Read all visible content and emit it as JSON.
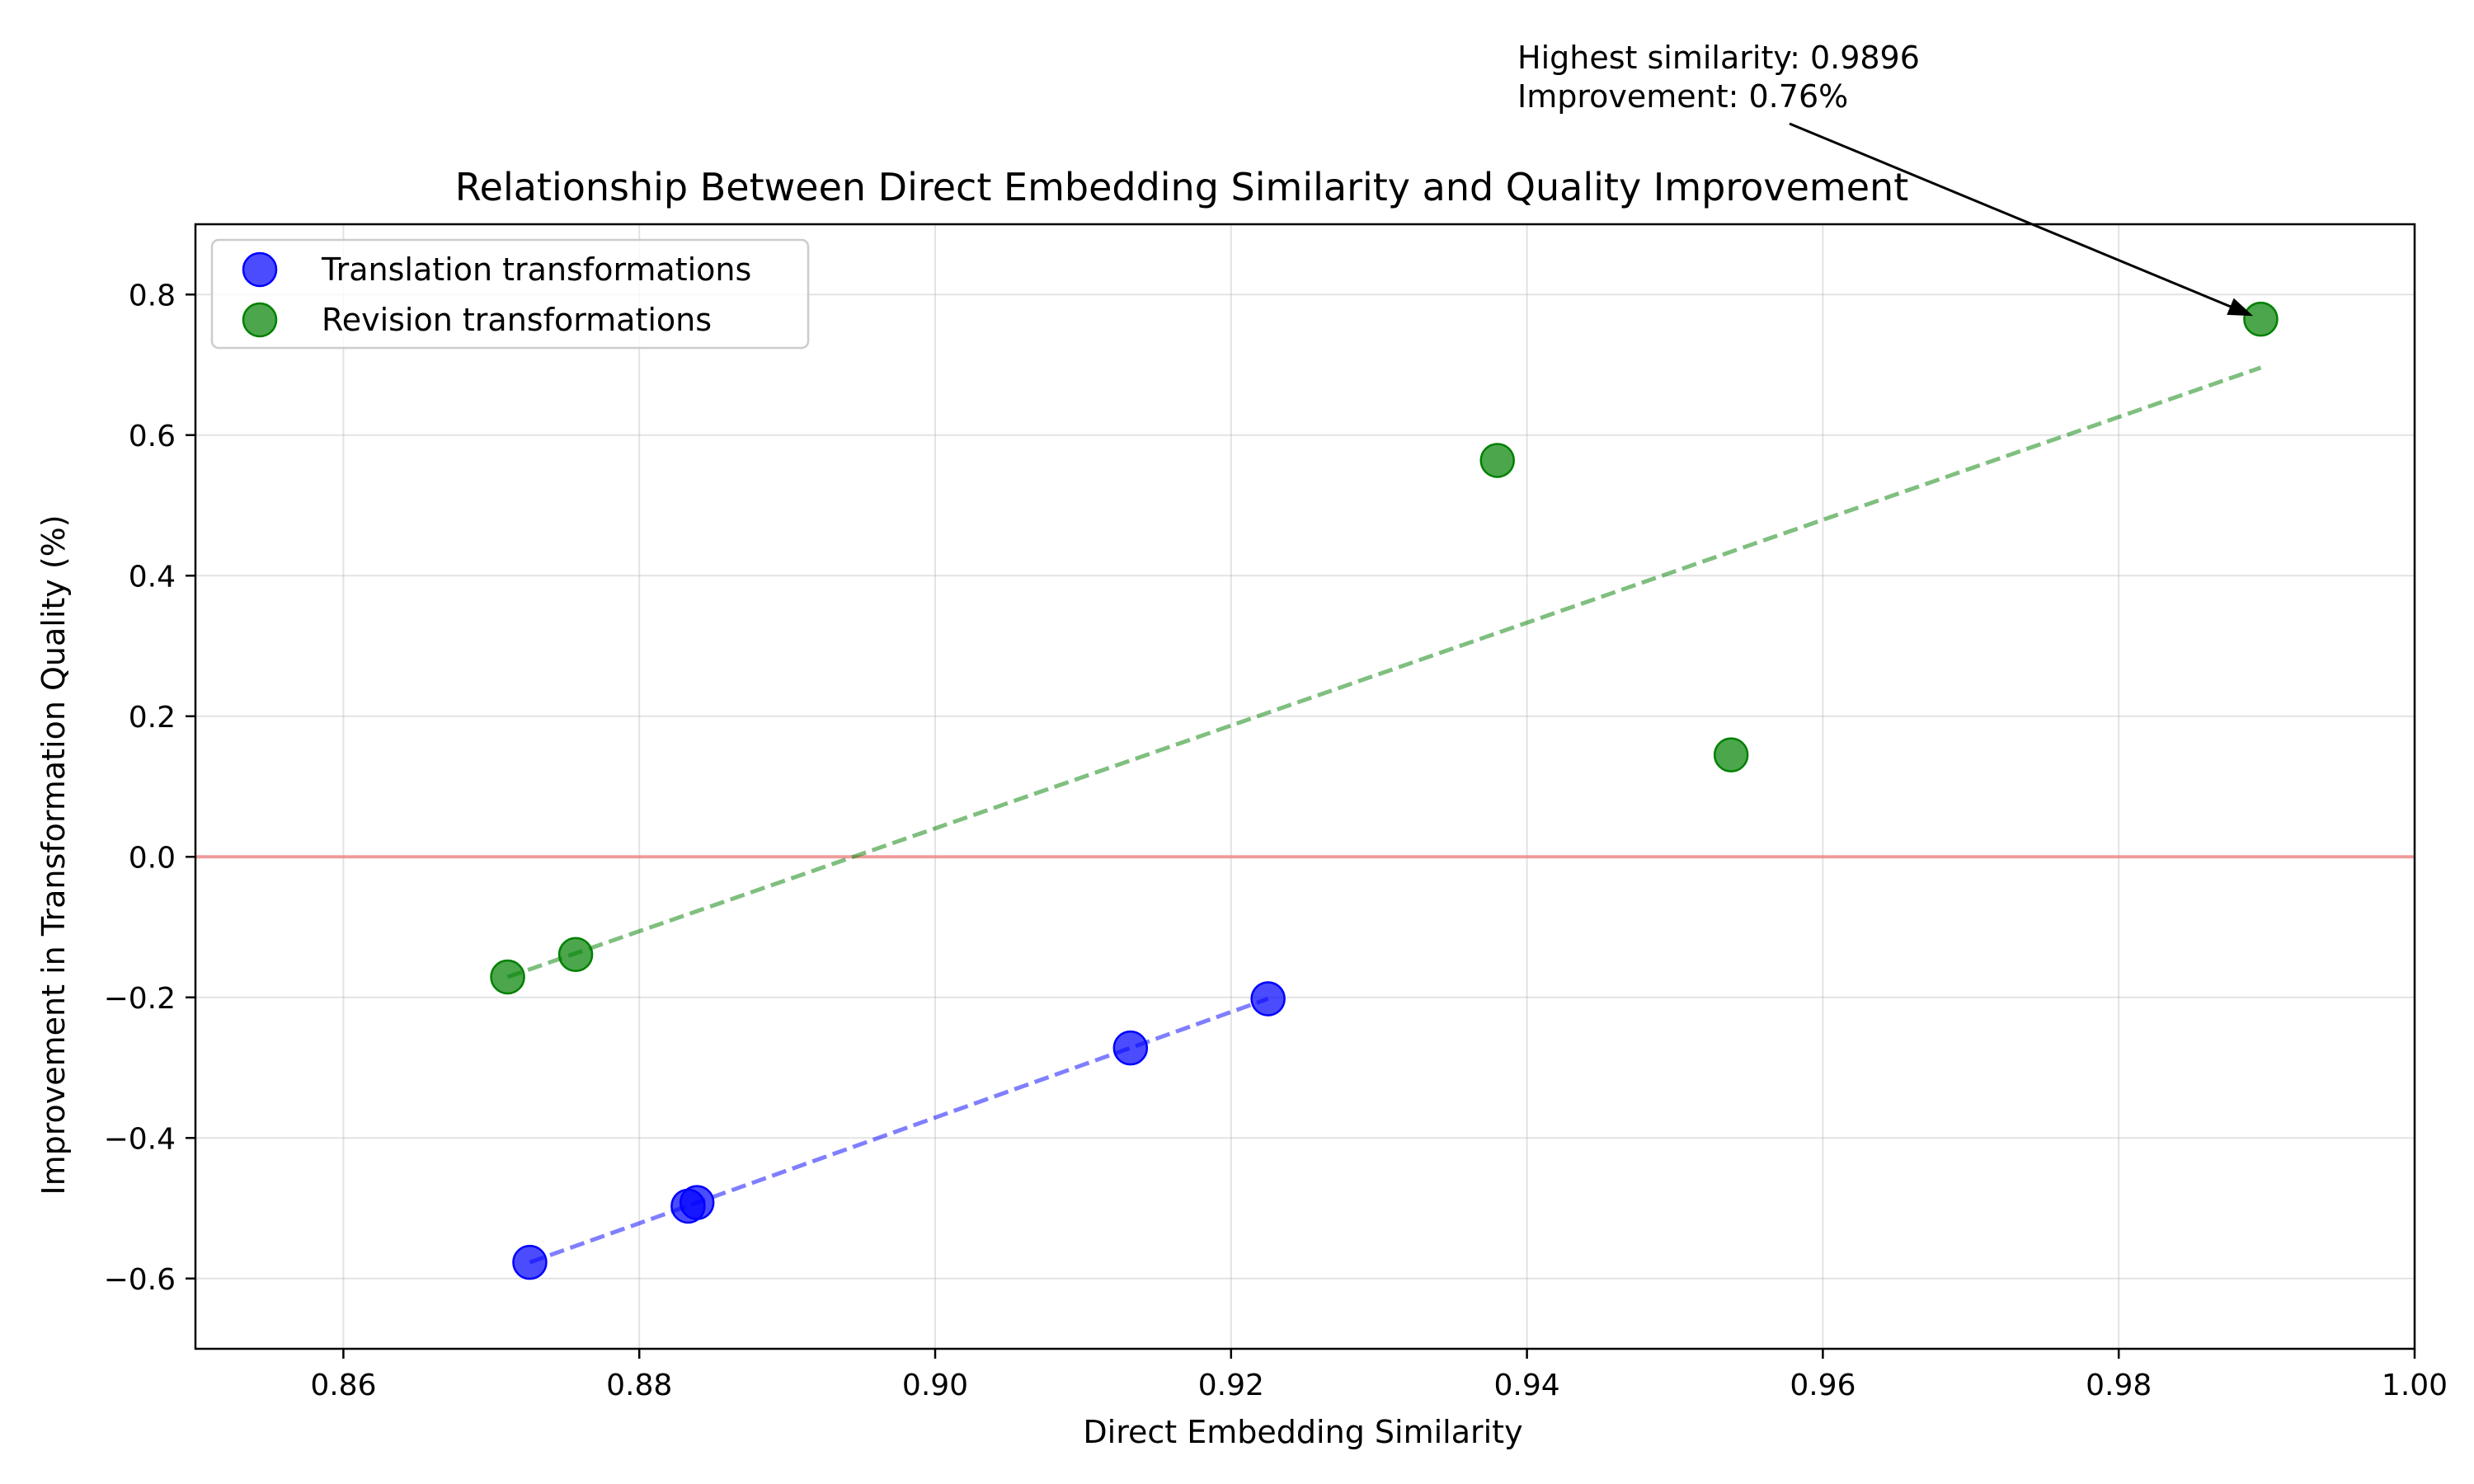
{
  "chart_data": {
    "type": "scatter",
    "title": "Relationship Between Direct Embedding Similarity and Quality Improvement",
    "xlabel": "Direct Embedding Similarity",
    "ylabel": "Improvement in Transformation Quality (%)",
    "xlim": [
      0.85,
      1.0
    ],
    "ylim": [
      -0.7,
      0.9
    ],
    "xticks": [
      0.86,
      0.88,
      0.9,
      0.92,
      0.94,
      0.96,
      0.98,
      1.0
    ],
    "xtick_labels": [
      "0.86",
      "0.88",
      "0.90",
      "0.92",
      "0.94",
      "0.96",
      "0.98",
      "1.00"
    ],
    "yticks": [
      -0.6,
      -0.4,
      -0.2,
      0.0,
      0.2,
      0.4,
      0.6,
      0.8
    ],
    "ytick_labels": [
      "−0.6",
      "−0.4",
      "−0.2",
      "0.0",
      "0.2",
      "0.4",
      "0.6",
      "0.8"
    ],
    "grid": true,
    "legend_position": "top-left",
    "reference_line": {
      "y": 0.0,
      "color": "#f08080"
    },
    "series": [
      {
        "name": "Translation transformations",
        "color": "#0000ff",
        "points": [
          {
            "x": 0.8726,
            "y": -0.577
          },
          {
            "x": 0.8833,
            "y": -0.497
          },
          {
            "x": 0.8839,
            "y": -0.492
          },
          {
            "x": 0.9132,
            "y": -0.272
          },
          {
            "x": 0.9225,
            "y": -0.202
          }
        ],
        "trend": {
          "x": [
            0.8726,
            0.9225
          ],
          "y": [
            -0.577,
            -0.202
          ]
        }
      },
      {
        "name": "Revision transformations",
        "color": "#008000",
        "points": [
          {
            "x": 0.8711,
            "y": -0.171
          },
          {
            "x": 0.8757,
            "y": -0.139
          },
          {
            "x": 0.938,
            "y": 0.564
          },
          {
            "x": 0.9538,
            "y": 0.145
          },
          {
            "x": 0.9896,
            "y": 0.765
          }
        ],
        "trend": {
          "x": [
            0.8711,
            0.9896
          ],
          "y": [
            -0.171,
            0.696
          ]
        }
      }
    ],
    "annotation": {
      "line1": "Highest similarity: 0.9896",
      "line2": "Improvement: 0.76%",
      "target": {
        "x": 0.9896,
        "y": 0.765
      }
    }
  }
}
